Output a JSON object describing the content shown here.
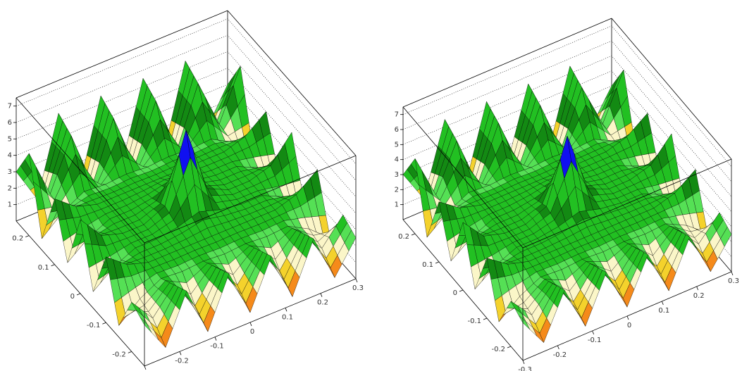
{
  "chart_data": [
    {
      "type": "surface",
      "x": [
        -0.3,
        -0.24,
        -0.18,
        -0.12,
        -0.06,
        0,
        0.06,
        0.12,
        0.18,
        0.24,
        0.3
      ],
      "y": [
        -0.25,
        -0.2,
        -0.15,
        -0.1,
        -0.05,
        0,
        0.05,
        0.1,
        0.15,
        0.2,
        0.25
      ],
      "z": [
        [
          2.5,
          0.6,
          3.5,
          0.5,
          3.5,
          0.6,
          3.5,
          0.5,
          3.5,
          0.6,
          2.5
        ],
        [
          3.0,
          1.5,
          3.0,
          1.2,
          3.0,
          1.4,
          3.0,
          1.2,
          3.0,
          1.5,
          3.0
        ],
        [
          0.7,
          1.8,
          2.5,
          2.4,
          2.5,
          2.4,
          2.5,
          2.4,
          2.5,
          1.8,
          0.7
        ],
        [
          4.0,
          3.0,
          2.6,
          2.6,
          2.6,
          2.6,
          2.6,
          2.6,
          2.6,
          3.0,
          4.0
        ],
        [
          1.0,
          2.0,
          2.6,
          2.6,
          2.8,
          3.2,
          2.8,
          2.6,
          2.6,
          2.0,
          1.0
        ],
        [
          4.5,
          3.0,
          2.6,
          2.6,
          3.2,
          7.3,
          3.2,
          2.6,
          2.6,
          3.0,
          4.5
        ],
        [
          1.0,
          2.0,
          2.6,
          2.6,
          2.8,
          3.2,
          2.8,
          2.6,
          2.6,
          2.0,
          1.0
        ],
        [
          4.0,
          3.0,
          2.6,
          2.6,
          2.6,
          2.6,
          2.6,
          2.6,
          2.6,
          3.0,
          4.0
        ],
        [
          0.7,
          1.8,
          2.5,
          2.4,
          2.5,
          2.4,
          2.5,
          2.4,
          2.5,
          1.8,
          0.7
        ],
        [
          5.0,
          2.0,
          5.0,
          1.5,
          5.0,
          1.6,
          5.0,
          1.5,
          5.0,
          2.0,
          5.0
        ],
        [
          3.0,
          0.8,
          5.5,
          0.6,
          5.5,
          0.8,
          5.5,
          0.6,
          5.5,
          0.8,
          3.0
        ]
      ],
      "xlim": [
        -0.3,
        0.3
      ],
      "ylim": [
        -0.25,
        0.25
      ],
      "zlim": [
        0,
        7.5
      ],
      "xticks": [
        -0.3,
        -0.2,
        -0.1,
        0,
        0.1,
        0.2,
        0.3
      ],
      "yticks": [
        -0.2,
        -0.1,
        0,
        0.1,
        0.2
      ],
      "zticks": [
        1,
        2,
        3,
        4,
        5,
        6,
        7
      ],
      "levels": [
        0.8,
        1.2,
        1.6,
        2.1,
        2.5,
        3.0,
        3.6,
        5.8,
        6.3,
        6.8,
        7.1
      ],
      "colors": [
        "#e01010",
        "#f58a1a",
        "#f4d22c",
        "#fbf6c8",
        "#55e055",
        "#22c022",
        "#138a13",
        "#22c022",
        "#1010f0",
        "#40d8ff",
        "#ff9cf0",
        "#c000f0"
      ]
    },
    {
      "type": "surface",
      "x": [
        -0.3,
        -0.24,
        -0.18,
        -0.12,
        -0.06,
        0,
        0.06,
        0.12,
        0.18,
        0.24,
        0.3
      ],
      "y": [
        -0.25,
        -0.2,
        -0.15,
        -0.1,
        -0.05,
        0,
        0.05,
        0.1,
        0.15,
        0.2,
        0.25
      ],
      "z": [
        [
          2.5,
          0.6,
          3.5,
          0.5,
          3.5,
          0.6,
          3.5,
          0.5,
          3.5,
          0.6,
          2.5
        ],
        [
          3.0,
          1.5,
          3.0,
          1.2,
          3.0,
          1.4,
          3.0,
          1.2,
          3.0,
          1.5,
          3.0
        ],
        [
          0.7,
          1.8,
          2.5,
          2.4,
          2.5,
          2.4,
          2.5,
          2.4,
          2.5,
          1.8,
          0.7
        ],
        [
          4.0,
          3.0,
          2.6,
          2.6,
          2.6,
          2.6,
          2.6,
          2.6,
          2.6,
          3.0,
          4.0
        ],
        [
          1.0,
          2.0,
          2.6,
          2.6,
          2.8,
          3.2,
          2.8,
          2.6,
          2.6,
          2.0,
          1.0
        ],
        [
          4.5,
          3.0,
          2.6,
          2.6,
          3.2,
          7.3,
          3.2,
          2.6,
          2.6,
          3.0,
          4.5
        ],
        [
          1.0,
          2.0,
          2.6,
          2.6,
          2.8,
          3.2,
          2.8,
          2.6,
          2.6,
          2.0,
          1.0
        ],
        [
          4.0,
          3.0,
          2.6,
          2.6,
          2.6,
          2.6,
          2.6,
          2.6,
          2.6,
          3.0,
          4.0
        ],
        [
          0.7,
          1.8,
          2.5,
          2.4,
          2.5,
          2.4,
          2.5,
          2.4,
          2.5,
          1.8,
          0.7
        ],
        [
          5.0,
          2.0,
          5.0,
          1.5,
          5.0,
          1.6,
          5.0,
          1.5,
          5.0,
          2.0,
          5.0
        ],
        [
          3.0,
          0.8,
          5.5,
          0.6,
          5.5,
          0.8,
          5.5,
          0.6,
          5.5,
          0.8,
          3.0
        ]
      ],
      "xlim": [
        -0.3,
        0.3
      ],
      "ylim": [
        -0.25,
        0.25
      ],
      "zlim": [
        0,
        7.5
      ],
      "xticks": [
        -0.3,
        -0.2,
        -0.1,
        0,
        0.1,
        0.2,
        0.3
      ],
      "yticks": [
        -0.2,
        -0.1,
        0,
        0.1,
        0.2
      ],
      "zticks": [
        1,
        2,
        3,
        4,
        5,
        6,
        7
      ],
      "levels": [
        0.8,
        1.2,
        1.6,
        2.1,
        2.5,
        3.0,
        3.6,
        5.8,
        6.3,
        6.8,
        7.1
      ],
      "colors": [
        "#e01010",
        "#f58a1a",
        "#f4d22c",
        "#fbf6c8",
        "#55e055",
        "#22c022",
        "#138a13",
        "#22c022",
        "#1010f0",
        "#40d8ff",
        "#ff9cf0",
        "#c000f0"
      ]
    }
  ]
}
